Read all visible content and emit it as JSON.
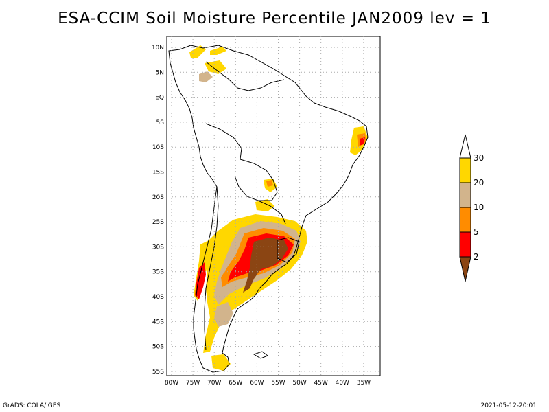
{
  "title": "ESA-CCIM Soil Moisture Percentile JAN2009 lev = 1",
  "footer_left": "GrADS: COLA/IGES",
  "footer_right": "2021-05-12-20:01",
  "lat_labels": [
    "10N",
    "5N",
    "EQ",
    "5S",
    "10S",
    "15S",
    "20S",
    "25S",
    "30S",
    "35S",
    "40S",
    "45S",
    "50S",
    "55S"
  ],
  "lon_labels": [
    "80W",
    "75W",
    "70W",
    "65W",
    "60W",
    "55W",
    "50W",
    "45W",
    "40W",
    "35W"
  ],
  "legend": {
    "labels": [
      "30",
      "20",
      "10",
      "5",
      "2"
    ],
    "colors": [
      "#ffd700",
      "#d2b48c",
      "#ff8c00",
      "#ff0000",
      "#8b4513"
    ]
  },
  "colors": {
    "p30": "#ffd700",
    "p20": "#d2b48c",
    "p10": "#ff8c00",
    "p5": "#ff0000",
    "p2": "#8b4513",
    "coast": "#000000",
    "grid": "#aaaaaa"
  }
}
